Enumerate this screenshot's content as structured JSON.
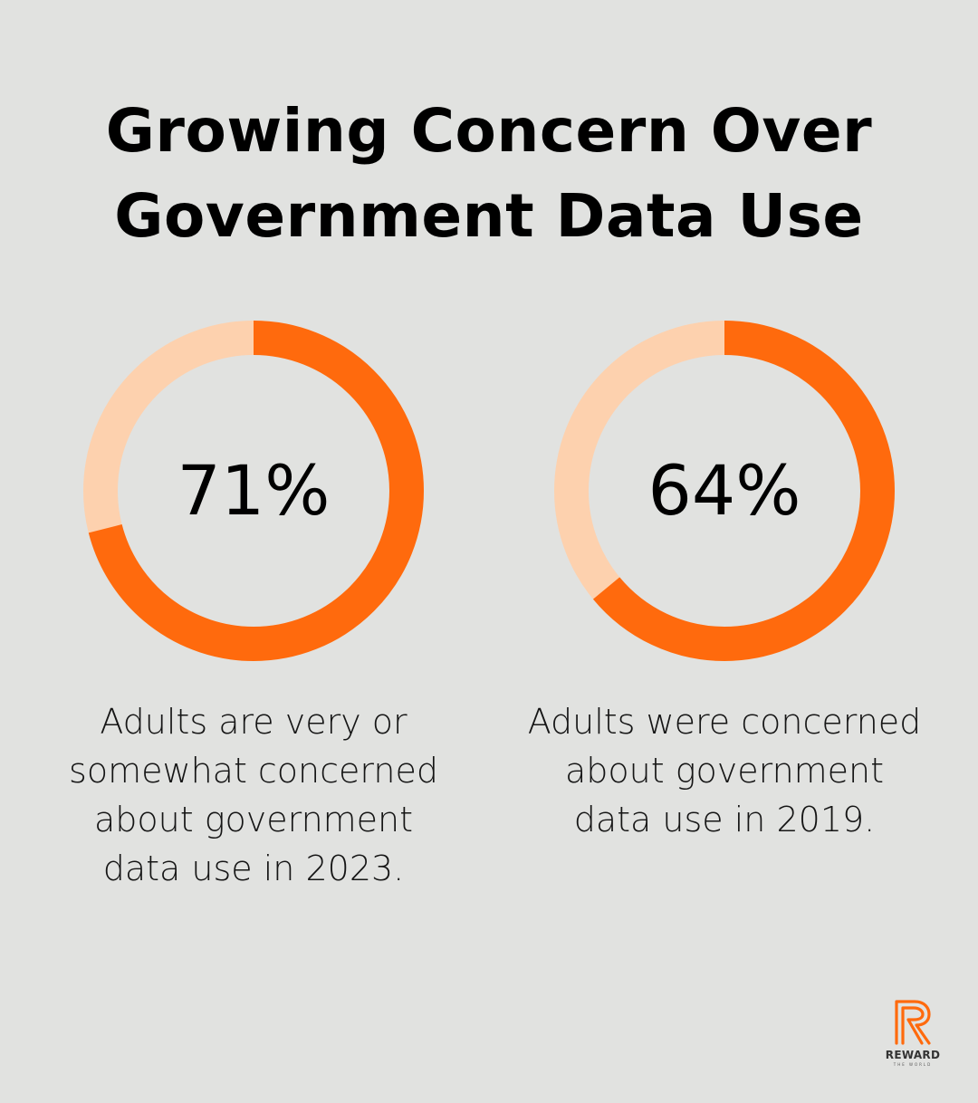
{
  "title_line1": "Growing Concern Over",
  "title_line2": "Government Data Use",
  "colors": {
    "background": "#e1e2e0",
    "accent": "#ff6a0d",
    "track": "#fdd1ae"
  },
  "chart_data": [
    {
      "type": "pie",
      "variant": "donut",
      "value_percent": 71,
      "label": "71%",
      "caption": "Adults are very or somewhat concerned about government data use in 2023."
    },
    {
      "type": "pie",
      "variant": "donut",
      "value_percent": 64,
      "label": "64%",
      "caption": "Adults were concerned about government data use in 2019."
    }
  ],
  "logo": {
    "icon": "reward-r-logo-icon",
    "word": "REWARD",
    "subword": "THE WORLD"
  }
}
